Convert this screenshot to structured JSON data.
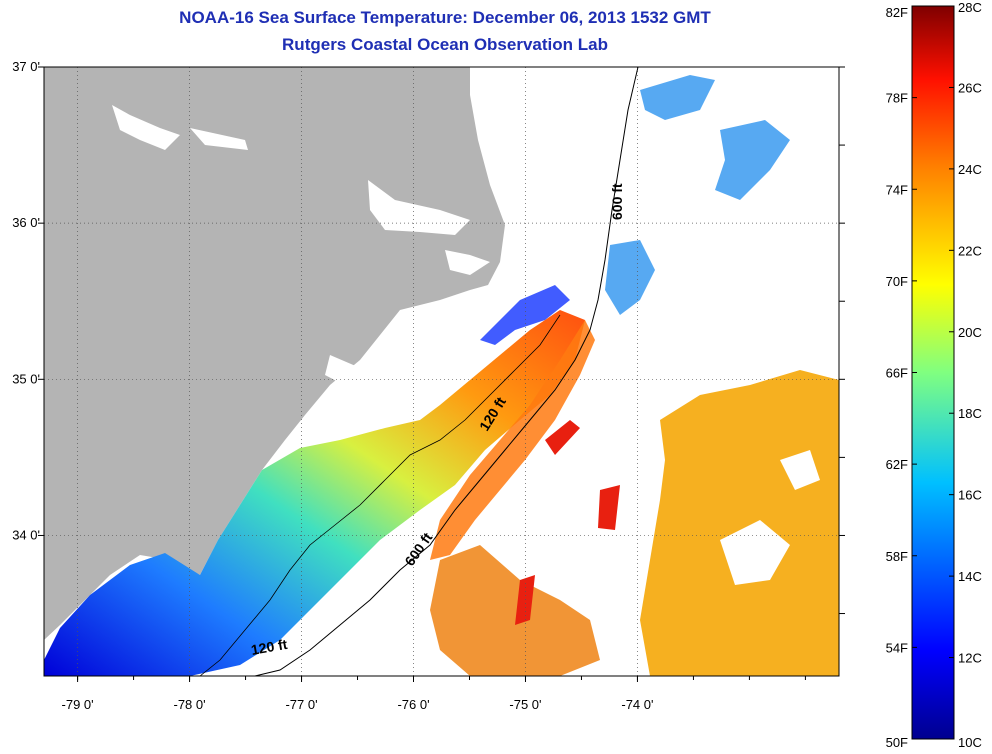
{
  "title": "NOAA-16 Sea Surface Temperature:  December 06, 2013 1532 GMT",
  "subtitle": "Rutgers Coastal Ocean Observation Lab",
  "map": {
    "lon_ticks": [
      {
        "value": -79,
        "label": "-79 0'"
      },
      {
        "value": -78,
        "label": "-78 0'"
      },
      {
        "value": -77,
        "label": "-77 0'"
      },
      {
        "value": -76,
        "label": "-76 0'"
      },
      {
        "value": -75,
        "label": "-75 0'"
      },
      {
        "value": -74,
        "label": "-74 0'"
      }
    ],
    "lat_ticks": [
      {
        "value": 37,
        "label": "37 0'"
      },
      {
        "value": 36,
        "label": "36 0'"
      },
      {
        "value": 35,
        "label": "35 0'"
      },
      {
        "value": 34,
        "label": "34 0'"
      }
    ],
    "lon_range": [
      -79.3,
      -72.2
    ],
    "lat_range": [
      33.1,
      37.0
    ],
    "isobath_labels": [
      {
        "text": "600 ft"
      },
      {
        "text": "120 ft"
      },
      {
        "text": "600 ft"
      },
      {
        "text": "120 ft"
      }
    ]
  },
  "colorbar": {
    "f_labels": [
      "82F",
      "78F",
      "74F",
      "70F",
      "66F",
      "62F",
      "58F",
      "54F",
      "50F"
    ],
    "c_labels": [
      "28C",
      "26C",
      "24C",
      "22C",
      "20C",
      "18C",
      "16C",
      "14C",
      "12C",
      "10C"
    ],
    "colors": [
      "#7f0000",
      "#ff0000",
      "#ff8000",
      "#ffff00",
      "#80ff80",
      "#00ffff",
      "#0080ff",
      "#0000ff",
      "#00008f"
    ]
  },
  "colors": {
    "land": "#b4b4b4",
    "title": "#1f2fb4"
  }
}
